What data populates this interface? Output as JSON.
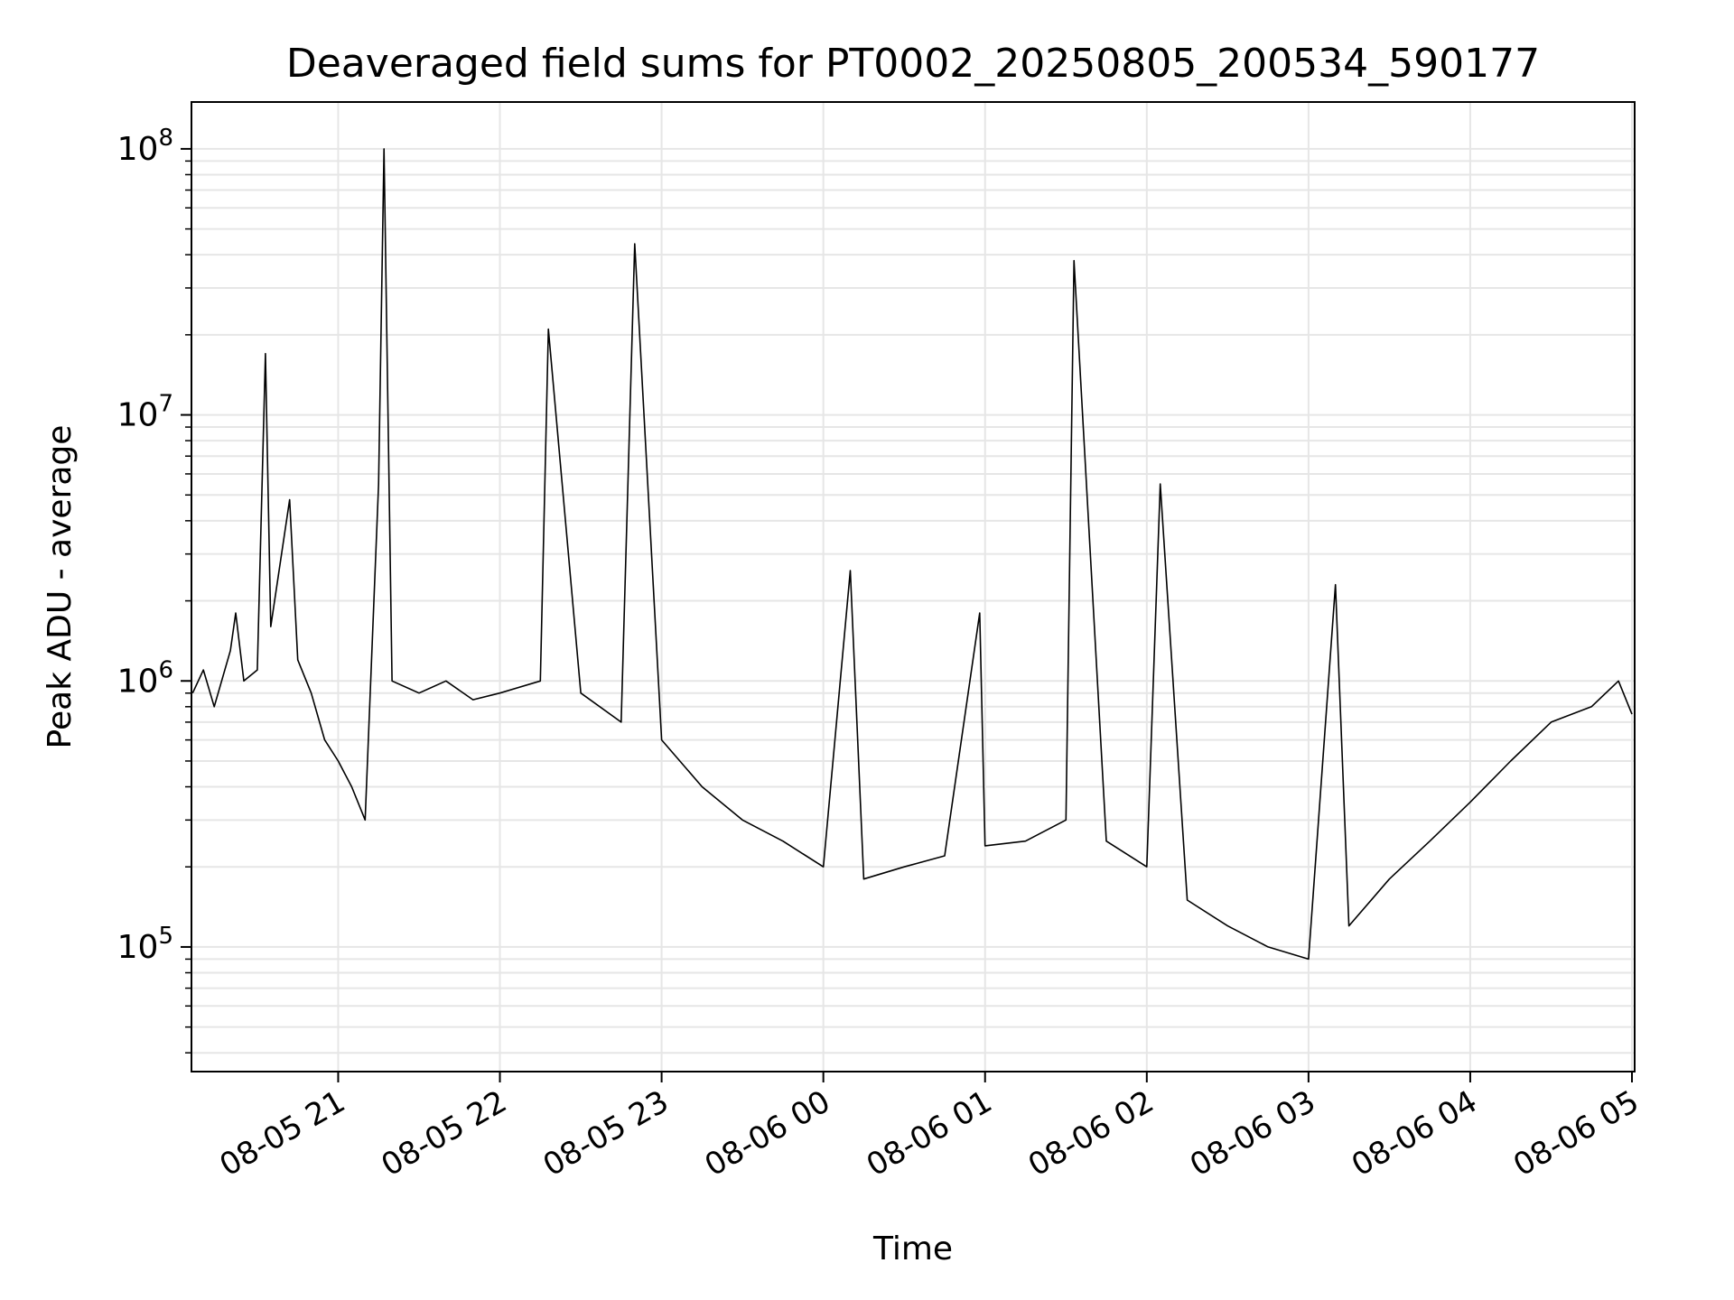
{
  "chart_data": {
    "type": "line",
    "title": "Deaveraged field sums for PT0002_20250805_200534_590177",
    "xlabel": "Time",
    "ylabel": "Peak ADU - average",
    "x_range": [
      "2025-08-05 20:05:34",
      "2025-08-06 05:01:00"
    ],
    "x_ticks": [
      "08-05 21",
      "08-05 22",
      "08-05 23",
      "08-06 00",
      "08-06 01",
      "08-06 02",
      "08-06 03",
      "08-06 04",
      "08-06 05"
    ],
    "y_scale": "log",
    "ylim": [
      34000,
      150000000
    ],
    "y_ticks": [
      {
        "base": "10",
        "exp": "5",
        "value": 100000
      },
      {
        "base": "10",
        "exp": "6",
        "value": 1000000
      },
      {
        "base": "10",
        "exp": "7",
        "value": 10000000
      },
      {
        "base": "10",
        "exp": "8",
        "value": 100000000
      }
    ],
    "grid": true,
    "line_color": "#000000",
    "grid_color": "#e6e6e6",
    "series": [
      {
        "points": [
          {
            "t": "2025-08-05 20:06",
            "v": 900000
          },
          {
            "t": "2025-08-05 20:10",
            "v": 1100000
          },
          {
            "t": "2025-08-05 20:14",
            "v": 800000
          },
          {
            "t": "2025-08-05 20:20",
            "v": 1300000
          },
          {
            "t": "2025-08-05 20:22",
            "v": 1800000
          },
          {
            "t": "2025-08-05 20:25",
            "v": 1000000
          },
          {
            "t": "2025-08-05 20:30",
            "v": 1100000
          },
          {
            "t": "2025-08-05 20:33",
            "v": 17000000
          },
          {
            "t": "2025-08-05 20:35",
            "v": 1600000
          },
          {
            "t": "2025-08-05 20:42",
            "v": 4800000
          },
          {
            "t": "2025-08-05 20:45",
            "v": 1200000
          },
          {
            "t": "2025-08-05 20:50",
            "v": 900000
          },
          {
            "t": "2025-08-05 20:55",
            "v": 600000
          },
          {
            "t": "2025-08-05 21:00",
            "v": 500000
          },
          {
            "t": "2025-08-05 21:05",
            "v": 400000
          },
          {
            "t": "2025-08-05 21:10",
            "v": 300000
          },
          {
            "t": "2025-08-05 21:15",
            "v": 5500000
          },
          {
            "t": "2025-08-05 21:17",
            "v": 100000000
          },
          {
            "t": "2025-08-05 21:20",
            "v": 1000000
          },
          {
            "t": "2025-08-05 21:30",
            "v": 900000
          },
          {
            "t": "2025-08-05 21:40",
            "v": 1000000
          },
          {
            "t": "2025-08-05 21:50",
            "v": 850000
          },
          {
            "t": "2025-08-05 22:00",
            "v": 900000
          },
          {
            "t": "2025-08-05 22:15",
            "v": 1000000
          },
          {
            "t": "2025-08-05 22:18",
            "v": 21000000
          },
          {
            "t": "2025-08-05 22:30",
            "v": 900000
          },
          {
            "t": "2025-08-05 22:45",
            "v": 700000
          },
          {
            "t": "2025-08-05 22:50",
            "v": 44000000
          },
          {
            "t": "2025-08-05 23:00",
            "v": 600000
          },
          {
            "t": "2025-08-05 23:15",
            "v": 400000
          },
          {
            "t": "2025-08-05 23:30",
            "v": 300000
          },
          {
            "t": "2025-08-05 23:45",
            "v": 250000
          },
          {
            "t": "2025-08-06 00:00",
            "v": 200000
          },
          {
            "t": "2025-08-06 00:10",
            "v": 2600000
          },
          {
            "t": "2025-08-06 00:15",
            "v": 180000
          },
          {
            "t": "2025-08-06 00:30",
            "v": 200000
          },
          {
            "t": "2025-08-06 00:45",
            "v": 220000
          },
          {
            "t": "2025-08-06 00:58",
            "v": 1800000
          },
          {
            "t": "2025-08-06 01:00",
            "v": 240000
          },
          {
            "t": "2025-08-06 01:15",
            "v": 250000
          },
          {
            "t": "2025-08-06 01:30",
            "v": 300000
          },
          {
            "t": "2025-08-06 01:33",
            "v": 38000000
          },
          {
            "t": "2025-08-06 01:45",
            "v": 250000
          },
          {
            "t": "2025-08-06 02:00",
            "v": 200000
          },
          {
            "t": "2025-08-06 02:05",
            "v": 5500000
          },
          {
            "t": "2025-08-06 02:15",
            "v": 150000
          },
          {
            "t": "2025-08-06 02:30",
            "v": 120000
          },
          {
            "t": "2025-08-06 02:45",
            "v": 100000
          },
          {
            "t": "2025-08-06 03:00",
            "v": 90000
          },
          {
            "t": "2025-08-06 03:10",
            "v": 2300000
          },
          {
            "t": "2025-08-06 03:15",
            "v": 120000
          },
          {
            "t": "2025-08-06 03:30",
            "v": 180000
          },
          {
            "t": "2025-08-06 03:45",
            "v": 250000
          },
          {
            "t": "2025-08-06 04:00",
            "v": 350000
          },
          {
            "t": "2025-08-06 04:15",
            "v": 500000
          },
          {
            "t": "2025-08-06 04:30",
            "v": 700000
          },
          {
            "t": "2025-08-06 04:45",
            "v": 800000
          },
          {
            "t": "2025-08-06 04:55",
            "v": 1000000
          },
          {
            "t": "2025-08-06 05:00",
            "v": 750000
          }
        ]
      }
    ]
  }
}
